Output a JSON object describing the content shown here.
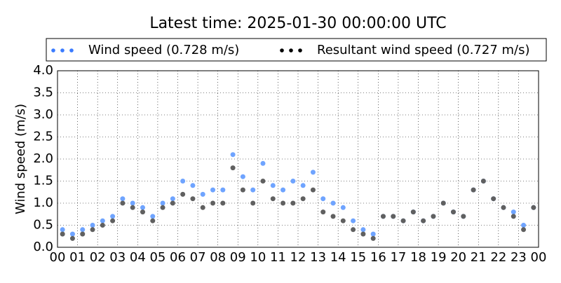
{
  "chart_data": {
    "type": "scatter",
    "title": "Latest time: 2025-01-30 00:00:00 UTC",
    "y_label": "Wind speed (m/s)",
    "x": [
      0.25,
      0.75,
      1.25,
      1.75,
      2.25,
      2.75,
      3.25,
      3.75,
      4.25,
      4.75,
      5.25,
      5.75,
      6.25,
      6.75,
      7.25,
      7.75,
      8.25,
      8.75,
      9.25,
      9.75,
      10.25,
      10.75,
      11.25,
      11.75,
      12.25,
      12.75,
      13.25,
      13.75,
      14.25,
      14.75,
      15.25,
      15.75,
      16.25,
      16.75,
      17.25,
      17.75,
      18.25,
      18.75,
      19.25,
      19.75,
      20.25,
      20.75,
      21.25,
      21.75,
      22.25,
      22.75,
      23.25,
      23.75
    ],
    "series": [
      {
        "name": "Wind speed (0.728 m/s)",
        "color": "#3a7bff",
        "values": [
          0.4,
          0.3,
          0.4,
          0.5,
          0.6,
          0.7,
          1.1,
          1.0,
          0.9,
          0.7,
          1.0,
          1.1,
          1.5,
          1.4,
          1.2,
          1.3,
          1.3,
          2.1,
          1.6,
          1.3,
          1.9,
          1.4,
          1.3,
          1.5,
          1.4,
          1.7,
          1.1,
          1.0,
          0.9,
          0.6,
          0.4,
          0.3,
          0.7,
          0.7,
          0.6,
          0.8,
          0.6,
          0.7,
          1.0,
          0.8,
          0.7,
          1.3,
          1.5,
          1.1,
          0.9,
          0.8,
          0.5,
          0.9
        ]
      },
      {
        "name": "Resultant wind speed (0.727 m/s)",
        "color": "#000000",
        "values": [
          0.3,
          0.2,
          0.3,
          0.4,
          0.5,
          0.6,
          1.0,
          0.9,
          0.8,
          0.6,
          0.9,
          1.0,
          1.2,
          1.1,
          0.9,
          1.0,
          1.0,
          1.8,
          1.3,
          1.0,
          1.5,
          1.1,
          1.0,
          1.0,
          1.1,
          1.3,
          0.8,
          0.7,
          0.6,
          0.4,
          0.3,
          0.2,
          0.7,
          0.7,
          0.6,
          0.8,
          0.6,
          0.7,
          1.0,
          0.8,
          0.7,
          1.3,
          1.5,
          1.1,
          0.9,
          0.7,
          0.4,
          0.9
        ]
      }
    ],
    "point_colors": [
      "#6fa4ff",
      "#606060"
    ],
    "xlim": [
      0,
      24
    ],
    "xticks": [
      {
        "value": 0,
        "label": "00"
      },
      {
        "value": 1,
        "label": "01"
      },
      {
        "value": 2,
        "label": "02"
      },
      {
        "value": 3,
        "label": "03"
      },
      {
        "value": 4,
        "label": "04"
      },
      {
        "value": 5,
        "label": "05"
      },
      {
        "value": 6,
        "label": "06"
      },
      {
        "value": 7,
        "label": "07"
      },
      {
        "value": 8,
        "label": "08"
      },
      {
        "value": 9,
        "label": "09"
      },
      10,
      11,
      12,
      13,
      14,
      15,
      16,
      17,
      18,
      19,
      20,
      21,
      22,
      23,
      {
        "value": 24,
        "label": "00"
      }
    ],
    "ylim": [
      0,
      4
    ],
    "yticks": [
      {
        "value": 0,
        "label": "0.0"
      },
      {
        "value": 0.5,
        "label": "0.5"
      },
      {
        "value": 1,
        "label": "1.0"
      },
      {
        "value": 1.5,
        "label": "1.5"
      },
      {
        "value": 2,
        "label": "2.0"
      },
      {
        "value": 2.5,
        "label": "2.5"
      },
      {
        "value": 3,
        "label": "3.0"
      },
      {
        "value": 3.5,
        "label": "3.5"
      },
      {
        "value": 4,
        "label": "4.0"
      }
    ],
    "grid": true
  }
}
